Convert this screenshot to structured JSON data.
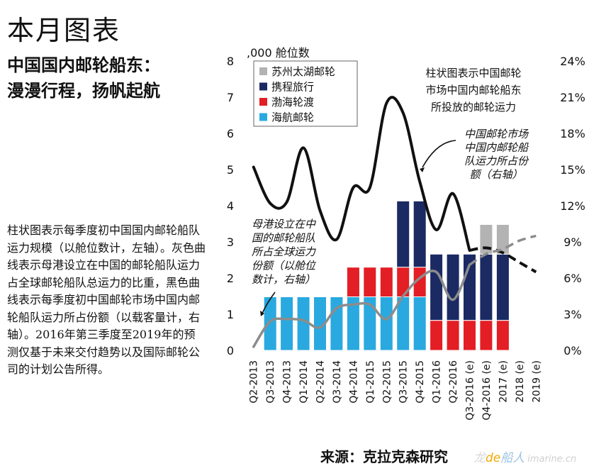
{
  "page": {
    "heading": "本月图表",
    "headline_line1": "中国国内邮轮船东：",
    "headline_line2": "漫漫行程，扬帆起航",
    "caption": "柱状图表示每季度初中国国内邮轮船队运力规模（以舱位数计，左轴）。灰色曲线表示母港设立在中国的邮轮船队运力占全球邮轮船队总运力的比重，黑色曲线表示每季度初中国邮轮市场中国内邮轮船队运力所占份额（以载客量计，右轴）。2016年第三季度至2019年的预测仅基于未来交付趋势以及国际邮轮公司的计划公告所得。",
    "source": "来源：克拉克森研究",
    "watermark": {
      "part1": "龙",
      "part2": "de",
      "part3": "船人",
      "part4": "imarine.cn"
    }
  },
  "chart_data": {
    "type": "bar",
    "stacked": true,
    "left_axis_unit_label": ",000 舱位数",
    "left_ylim": [
      0,
      8
    ],
    "left_ticks": [
      "0",
      "1",
      "2",
      "3",
      "4",
      "5",
      "6",
      "7",
      "8"
    ],
    "right_ylim": [
      0,
      24
    ],
    "right_ticks": [
      "0%",
      "3%",
      "6%",
      "9%",
      "12%",
      "15%",
      "18%",
      "21%",
      "24%"
    ],
    "categories": [
      "Q2-2013",
      "Q3-2013",
      "Q4-2013",
      "Q1-2014",
      "Q2-2014",
      "Q3-2014",
      "Q4-2014",
      "Q1-2015",
      "Q2-2015",
      "Q3-2015",
      "Q4-2015",
      "Q1-2016",
      "Q2-2016",
      "Q3-2016 (e)",
      "Q4-2016 (e)",
      "2017 (e)",
      "2018 (e)",
      "2019 (e)"
    ],
    "series": [
      {
        "name": "海航邮轮",
        "color": "#29a9df",
        "values": [
          0,
          1.48,
          1.48,
          1.48,
          1.48,
          1.48,
          1.48,
          1.48,
          1.48,
          1.48,
          1.48,
          0,
          0,
          0,
          0,
          0,
          0,
          0
        ]
      },
      {
        "name": "渤海轮渡",
        "color": "#e31e24",
        "values": [
          0,
          0,
          0,
          0,
          0,
          0,
          0.82,
          0.82,
          0.82,
          0.82,
          0.82,
          0.83,
          0.83,
          0.83,
          0.83,
          0.83,
          0,
          0
        ]
      },
      {
        "name": "携程旅行",
        "color": "#1b2a63",
        "values": [
          0,
          0,
          0,
          0,
          0,
          0,
          0,
          0,
          0,
          1.83,
          1.83,
          1.83,
          1.83,
          1.83,
          1.83,
          1.83,
          0,
          0
        ]
      },
      {
        "name": "苏州太湖邮轮",
        "color": "#b3b3b3",
        "values": [
          0,
          0,
          0,
          0,
          0,
          0,
          0,
          0,
          0,
          0,
          0,
          0,
          0,
          0,
          0.82,
          0.82,
          0,
          0
        ]
      }
    ],
    "line_series": [
      {
        "color": "#111111",
        "values": [
          15.2,
          12.2,
          12.3,
          16.8,
          11.6,
          9.2,
          13.5,
          13.5,
          20.5,
          19.7,
          14.0,
          10.0,
          13.0,
          8.3,
          8.5,
          8.1,
          7.3,
          6.5
        ],
        "forecast_from_index": 14
      },
      {
        "color": "#8c8c8c",
        "values": [
          0.3,
          2.4,
          2.6,
          2.5,
          1.9,
          3.5,
          3.8,
          3.8,
          2.6,
          4.5,
          6.0,
          6.5,
          4.2,
          7.1,
          8.0,
          8.4,
          9.1,
          9.5
        ],
        "forecast_from_index": 14
      }
    ],
    "annotations": {
      "bar_note": [
        "柱状图表示中国邮轮",
        "市场中国内邮轮船东",
        "所投放的邮轮运力"
      ],
      "black_note": [
        "中国邮轮市场",
        "中国内邮轮船",
        "队运力所占份",
        "额（右轴）"
      ],
      "grey_note": [
        "母港设立在中",
        "国的邮轮船队",
        "所占全球运力",
        "份额（以舱位",
        "数计，右轴）"
      ]
    },
    "legend_position": "top-left",
    "grid": false
  }
}
